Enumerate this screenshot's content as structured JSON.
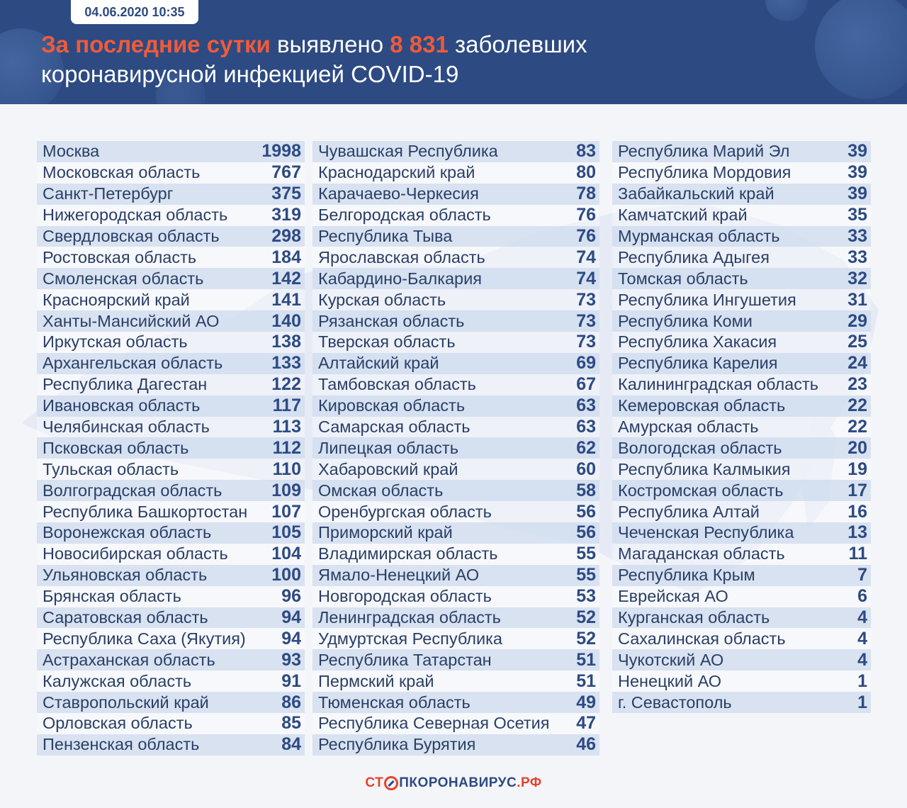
{
  "header": {
    "date": "04.06.2020 10:35",
    "headline_part1": "За последние сутки",
    "headline_part2": " выявлено ",
    "headline_number": "8 831",
    "headline_part3": " заболевших",
    "headline_line2": "коронавирусной инфекцией COVID-19"
  },
  "colors": {
    "header_bg": "#2d4a82",
    "accent": "#ef5b3a",
    "text": "#2a3f66"
  },
  "columns": [
    [
      {
        "name": "Москва",
        "value": "1998"
      },
      {
        "name": "Московская область",
        "value": "767"
      },
      {
        "name": "Санкт-Петербург",
        "value": "375"
      },
      {
        "name": "Нижегородская область",
        "value": "319"
      },
      {
        "name": "Свердловская область",
        "value": "298"
      },
      {
        "name": "Ростовская область",
        "value": "184"
      },
      {
        "name": "Смоленская область",
        "value": "142"
      },
      {
        "name": "Красноярский край",
        "value": "141"
      },
      {
        "name": "Ханты-Мансийский АО",
        "value": "140"
      },
      {
        "name": "Иркутская область",
        "value": "138"
      },
      {
        "name": "Архангельская область",
        "value": "133"
      },
      {
        "name": "Республика Дагестан",
        "value": "122"
      },
      {
        "name": "Ивановская область",
        "value": "117"
      },
      {
        "name": "Челябинская область",
        "value": "113"
      },
      {
        "name": "Псковская область",
        "value": "112"
      },
      {
        "name": "Тульская область",
        "value": "110"
      },
      {
        "name": "Волгоградская область",
        "value": "109"
      },
      {
        "name": "Республика Башкортостан",
        "value": "107"
      },
      {
        "name": "Воронежская область",
        "value": "105"
      },
      {
        "name": "Новосибирская область",
        "value": "104"
      },
      {
        "name": "Ульяновская область",
        "value": "100"
      },
      {
        "name": "Брянская область",
        "value": "96"
      },
      {
        "name": "Саратовская область",
        "value": "94"
      },
      {
        "name": "Республика Саха (Якутия)",
        "value": "94"
      },
      {
        "name": "Астраханская область",
        "value": "93"
      },
      {
        "name": "Калужская область",
        "value": "91"
      },
      {
        "name": "Ставропольский край",
        "value": "86"
      },
      {
        "name": "Орловская область",
        "value": "85"
      },
      {
        "name": "Пензенская область",
        "value": "84"
      }
    ],
    [
      {
        "name": "Чувашская Республика",
        "value": "83"
      },
      {
        "name": "Краснодарский край",
        "value": "80"
      },
      {
        "name": "Карачаево-Черкесия",
        "value": "78"
      },
      {
        "name": "Белгородская область",
        "value": "76"
      },
      {
        "name": "Республика Тыва",
        "value": "76"
      },
      {
        "name": "Ярославская область",
        "value": "74"
      },
      {
        "name": "Кабардино-Балкария",
        "value": "74"
      },
      {
        "name": "Курская область",
        "value": "73"
      },
      {
        "name": "Рязанская область",
        "value": "73"
      },
      {
        "name": "Тверская область",
        "value": "73"
      },
      {
        "name": "Алтайский край",
        "value": "69"
      },
      {
        "name": "Тамбовская область",
        "value": "67"
      },
      {
        "name": "Кировская область",
        "value": "63"
      },
      {
        "name": "Самарская область",
        "value": "63"
      },
      {
        "name": "Липецкая область",
        "value": "62"
      },
      {
        "name": "Хабаровский край",
        "value": "60"
      },
      {
        "name": "Омская область",
        "value": "58"
      },
      {
        "name": "Оренбургская область",
        "value": "56"
      },
      {
        "name": "Приморский край",
        "value": "56"
      },
      {
        "name": "Владимирская область",
        "value": "55"
      },
      {
        "name": "Ямало-Ненецкий АО",
        "value": "55"
      },
      {
        "name": "Новгородская область",
        "value": "53"
      },
      {
        "name": "Ленинградская область",
        "value": "52"
      },
      {
        "name": "Удмуртская Республика",
        "value": "52"
      },
      {
        "name": "Республика Татарстан",
        "value": "51"
      },
      {
        "name": "Пермский край",
        "value": "51"
      },
      {
        "name": "Тюменская область",
        "value": "49"
      },
      {
        "name": "Республика Северная Осетия",
        "value": "47"
      },
      {
        "name": "Республика Бурятия",
        "value": "46"
      }
    ],
    [
      {
        "name": "Республика Марий Эл",
        "value": "39"
      },
      {
        "name": "Республика Мордовия",
        "value": "39"
      },
      {
        "name": "Забайкальский край",
        "value": "39"
      },
      {
        "name": "Камчатский край",
        "value": "35"
      },
      {
        "name": "Мурманская область",
        "value": "33"
      },
      {
        "name": "Республика Адыгея",
        "value": "33"
      },
      {
        "name": "Томская область",
        "value": "32"
      },
      {
        "name": "Республика Ингушетия",
        "value": "31"
      },
      {
        "name": "Республика Коми",
        "value": "29"
      },
      {
        "name": "Республика Хакасия",
        "value": "25"
      },
      {
        "name": "Республика Карелия",
        "value": "24"
      },
      {
        "name": "Калининградская область",
        "value": "23"
      },
      {
        "name": "Кемеровская область",
        "value": "22"
      },
      {
        "name": "Амурская область",
        "value": "22"
      },
      {
        "name": "Вологодская область",
        "value": "20"
      },
      {
        "name": "Республика Калмыкия",
        "value": "19"
      },
      {
        "name": "Костромская область",
        "value": "17"
      },
      {
        "name": "Республика Алтай",
        "value": "16"
      },
      {
        "name": "Чеченская Республика",
        "value": "13"
      },
      {
        "name": "Магаданская область",
        "value": "11"
      },
      {
        "name": "Республика Крым",
        "value": "7"
      },
      {
        "name": "Еврейская АО",
        "value": "6"
      },
      {
        "name": "Курганская область",
        "value": "4"
      },
      {
        "name": "Сахалинская область",
        "value": "4"
      },
      {
        "name": "Чукотский АО",
        "value": "4"
      },
      {
        "name": "Ненецкий АО",
        "value": "1"
      },
      {
        "name": "г. Севастополь",
        "value": "1"
      }
    ]
  ],
  "footer": {
    "logo_part1": "СТ",
    "logo_part2": "ПКОРОНАВИРУС",
    "logo_part3": ".РФ"
  }
}
